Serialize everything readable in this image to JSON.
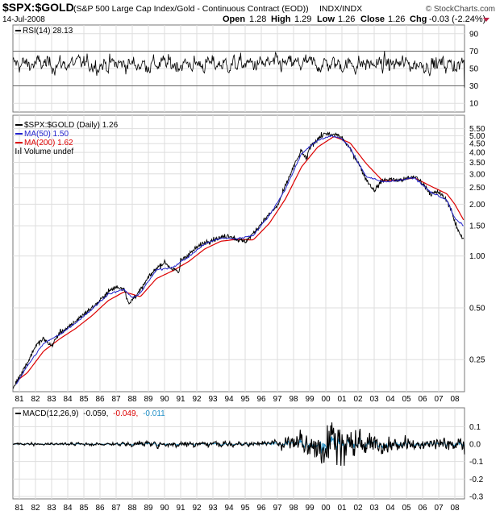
{
  "header": {
    "symbol": "$SPX:$GOLD",
    "description": "(S&P 500 Large Cap Index/Gold - Continuous Contract (EOD))",
    "exchange": "INDX/INDX",
    "watermark": "© StockCharts.com",
    "date": "14-Jul-2008",
    "open_label": "Open",
    "open": "1.28",
    "high_label": "High",
    "high": "1.29",
    "low_label": "Low",
    "low": "1.26",
    "close_label": "Close",
    "close": "1.26",
    "chg_label": "Chg",
    "chg": "-0.03 (-2.24%)"
  },
  "colors": {
    "price": "#000000",
    "ma50": "#2222cc",
    "ma200": "#dd0000",
    "signal": "#dd0000",
    "histogram": "#1f8fc7",
    "grid": "#dedede",
    "border": "#777777"
  },
  "chart_data": [
    {
      "type": "line",
      "panel": "RSI",
      "legend": "RSI(14) 28.13",
      "y_ticks": [
        "90",
        "70",
        "50",
        "30",
        "10"
      ],
      "y_tick_values": [
        90,
        70,
        50,
        30,
        10
      ],
      "ylim": [
        0,
        100
      ],
      "reference_lines": [
        70,
        30
      ],
      "last_value": 28.13
    },
    {
      "type": "line",
      "panel": "price",
      "log_scale": true,
      "grid": true,
      "legend_position": "top-left",
      "ylim": [
        0.17,
        6.1
      ],
      "y_ticks": [
        "5.50",
        "5.00",
        "4.50",
        "4.00",
        "3.50",
        "3.00",
        "2.50",
        "2.00",
        "1.50",
        "1.00",
        "0.50",
        "0.25"
      ],
      "y_tick_values": [
        5.5,
        5.0,
        4.5,
        4.0,
        3.5,
        3.0,
        2.5,
        2.0,
        1.5,
        1.0,
        0.5,
        0.25
      ],
      "x_tick_labels": [
        "81",
        "82",
        "83",
        "84",
        "85",
        "86",
        "87",
        "88",
        "89",
        "90",
        "91",
        "92",
        "93",
        "94",
        "95",
        "96",
        "97",
        "98",
        "99",
        "00",
        "01",
        "02",
        "03",
        "04",
        "05",
        "06",
        "07",
        "08"
      ],
      "x_tick_values": [
        1981,
        1982,
        1983,
        1984,
        1985,
        1986,
        1987,
        1988,
        1989,
        1990,
        1991,
        1992,
        1993,
        1994,
        1995,
        1996,
        1997,
        1998,
        1999,
        2000,
        2001,
        2002,
        2003,
        2004,
        2005,
        2006,
        2007,
        2008
      ],
      "xlim": [
        1980.6,
        2008.6
      ],
      "series": [
        {
          "name": "$SPX:$GOLD (Daily) 1.26",
          "x": [
            1980.6,
            1981.0,
            1981.5,
            1982.0,
            1982.5,
            1983.0,
            1983.5,
            1984.0,
            1984.5,
            1985.0,
            1985.5,
            1986.0,
            1986.5,
            1987.0,
            1987.5,
            1987.8,
            1988.0,
            1988.5,
            1989.0,
            1989.5,
            1990.0,
            1990.5,
            1990.9,
            1991.0,
            1991.5,
            1992.0,
            1992.5,
            1993.0,
            1993.5,
            1994.0,
            1994.5,
            1995.0,
            1995.5,
            1996.0,
            1996.5,
            1997.0,
            1997.5,
            1998.0,
            1998.5,
            1998.8,
            1999.0,
            1999.5,
            2000.0,
            2000.3,
            2000.7,
            2001.0,
            2001.5,
            2002.0,
            2002.5,
            2003.0,
            2003.5,
            2004.0,
            2004.5,
            2005.0,
            2005.5,
            2006.0,
            2006.5,
            2007.0,
            2007.5,
            2007.8,
            2008.0,
            2008.3,
            2008.54
          ],
          "values": [
            0.17,
            0.2,
            0.24,
            0.3,
            0.33,
            0.3,
            0.36,
            0.38,
            0.42,
            0.46,
            0.5,
            0.55,
            0.62,
            0.66,
            0.65,
            0.52,
            0.56,
            0.63,
            0.75,
            0.85,
            0.92,
            0.84,
            0.8,
            0.95,
            1.02,
            1.12,
            1.2,
            1.25,
            1.28,
            1.32,
            1.25,
            1.21,
            1.35,
            1.55,
            1.75,
            1.95,
            2.55,
            3.3,
            4.1,
            3.6,
            4.3,
            4.8,
            5.2,
            5.0,
            5.1,
            4.85,
            4.2,
            3.5,
            2.8,
            2.4,
            2.75,
            2.8,
            2.75,
            2.8,
            2.9,
            2.65,
            2.3,
            2.35,
            2.1,
            1.85,
            1.55,
            1.35,
            1.26
          ]
        },
        {
          "name": "MA(50) 1.50",
          "x": [
            1980.8,
            1981.5,
            1982.5,
            1983.5,
            1984.5,
            1985.5,
            1986.5,
            1987.5,
            1988.0,
            1988.5,
            1989.5,
            1990.5,
            1991.5,
            1992.5,
            1993.5,
            1994.5,
            1995.5,
            1996.5,
            1997.5,
            1998.5,
            1999.5,
            2000.3,
            2001.0,
            2001.5,
            2002.5,
            2003.5,
            2004.5,
            2005.5,
            2006.5,
            2007.5,
            2008.0,
            2008.54
          ],
          "values": [
            0.18,
            0.23,
            0.31,
            0.35,
            0.41,
            0.49,
            0.6,
            0.64,
            0.57,
            0.61,
            0.83,
            0.86,
            0.99,
            1.18,
            1.27,
            1.26,
            1.32,
            1.72,
            2.45,
            3.95,
            4.7,
            5.0,
            4.8,
            4.25,
            2.9,
            2.7,
            2.75,
            2.85,
            2.35,
            2.12,
            1.65,
            1.5
          ]
        },
        {
          "name": "MA(200) 1.62",
          "x": [
            1980.9,
            1981.5,
            1982.5,
            1983.5,
            1984.5,
            1985.5,
            1986.5,
            1987.5,
            1988.5,
            1989.5,
            1990.5,
            1991.5,
            1992.5,
            1993.5,
            1994.5,
            1995.5,
            1996.5,
            1997.5,
            1998.5,
            1999.5,
            2000.5,
            2001.5,
            2002.5,
            2003.5,
            2004.5,
            2005.5,
            2006.5,
            2007.5,
            2008.0,
            2008.54
          ],
          "values": [
            0.19,
            0.21,
            0.28,
            0.33,
            0.38,
            0.45,
            0.55,
            0.62,
            0.58,
            0.74,
            0.82,
            0.93,
            1.1,
            1.22,
            1.25,
            1.24,
            1.55,
            2.15,
            3.3,
            4.3,
            4.95,
            4.55,
            3.45,
            2.75,
            2.75,
            2.85,
            2.55,
            2.3,
            2.0,
            1.62
          ]
        }
      ],
      "volume_legend": "Volume undef"
    },
    {
      "type": "line",
      "panel": "MACD",
      "legend_prefix": "MACD(12,26,9)",
      "legend_macd": "-0.059,",
      "legend_signal": "-0.049,",
      "legend_hist": "-0.011",
      "y_ticks": [
        "0.1",
        "0.0",
        "-0.1",
        "-0.2",
        "-0.3"
      ],
      "y_tick_values": [
        0.1,
        0.0,
        -0.1,
        -0.2,
        -0.3
      ],
      "ylim": [
        -0.3,
        0.18
      ],
      "x_tick_labels": [
        "81",
        "82",
        "83",
        "84",
        "85",
        "86",
        "87",
        "88",
        "89",
        "90",
        "91",
        "92",
        "93",
        "94",
        "95",
        "96",
        "97",
        "98",
        "99",
        "00",
        "01",
        "02",
        "03",
        "04",
        "05",
        "06",
        "07",
        "08"
      ],
      "macd_amplitude_envelope": {
        "x": [
          1980.6,
          1987.0,
          1988.0,
          1996.0,
          1997.5,
          1999.0,
          2000.0,
          2001.5,
          2003.0,
          2006.0,
          2008.54
        ],
        "amplitude": [
          0.008,
          0.012,
          0.02,
          0.02,
          0.05,
          0.09,
          0.2,
          0.13,
          0.08,
          0.04,
          0.06
        ]
      },
      "last_values": {
        "macd": -0.059,
        "signal": -0.049,
        "histogram": -0.011
      }
    }
  ]
}
